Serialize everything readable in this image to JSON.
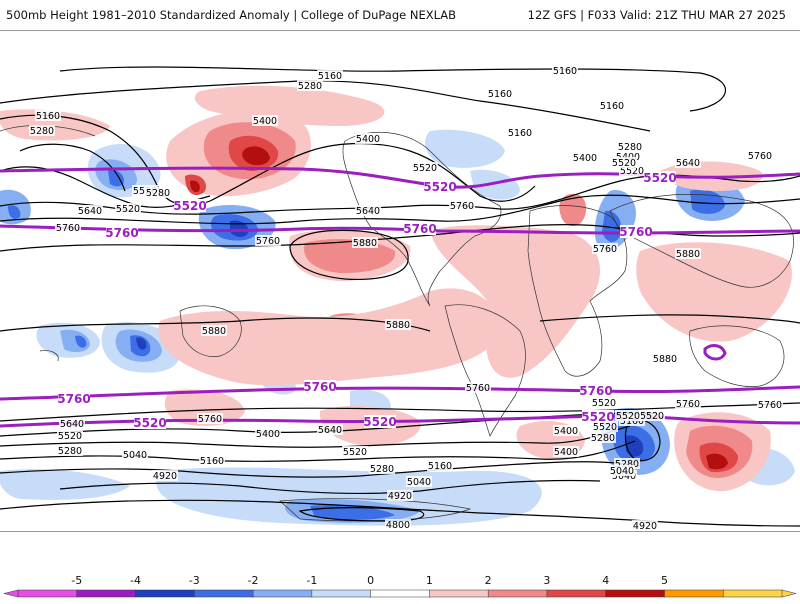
{
  "header": {
    "left_title": "500mb Height 1981–2010 Standardized Anomaly | College of DuPage NEXLAB",
    "right_title": "12Z GFS | F033 Valid: 21Z THU MAR 27 2025"
  },
  "map": {
    "contour_labels": [
      "5160",
      "5160",
      "5280",
      "5160",
      "5160",
      "5160",
      "5400",
      "5160",
      "5400",
      "5280",
      "5400",
      "5520",
      "5400",
      "5280",
      "5520",
      "5640",
      "5280",
      "5520",
      "5640",
      "5520",
      "5520",
      "5760",
      "5640",
      "5760",
      "5760",
      "5760",
      "5760",
      "5880",
      "5880",
      "5880",
      "5880",
      "5880",
      "5760",
      "5760",
      "5760",
      "5760",
      "5640",
      "5520",
      "5520",
      "5280",
      "5520",
      "5400",
      "5640",
      "5400",
      "5520",
      "5280",
      "5040",
      "5160",
      "5280",
      "5160",
      "5040",
      "4920",
      "4920",
      "5040",
      "5280",
      "5160",
      "5520",
      "5400",
      "5040",
      "4800",
      "4920",
      "5520"
    ],
    "highlight_labels": [
      "5520",
      "5520",
      "5520",
      "5760",
      "5760",
      "5760",
      "5760",
      "5760",
      "5760",
      "5520",
      "5520",
      "5520"
    ],
    "colors": {
      "highlight_contour": "#9b1fc0",
      "height_contour": "#000000",
      "coastline": "#333333"
    }
  },
  "colorbar": {
    "labels": [
      "-5",
      "-4",
      "-3",
      "-2",
      "-1",
      "0",
      "1",
      "2",
      "3",
      "4",
      "5"
    ],
    "colors": [
      "#e64fe6",
      "#9b1fc0",
      "#1f3fbf",
      "#3c6ee6",
      "#86aef2",
      "#c6dcf8",
      "#ffffff",
      "#f9c6c6",
      "#f08a8a",
      "#e04848",
      "#b40f0f",
      "#ff9900",
      "#ffd24a"
    ]
  }
}
